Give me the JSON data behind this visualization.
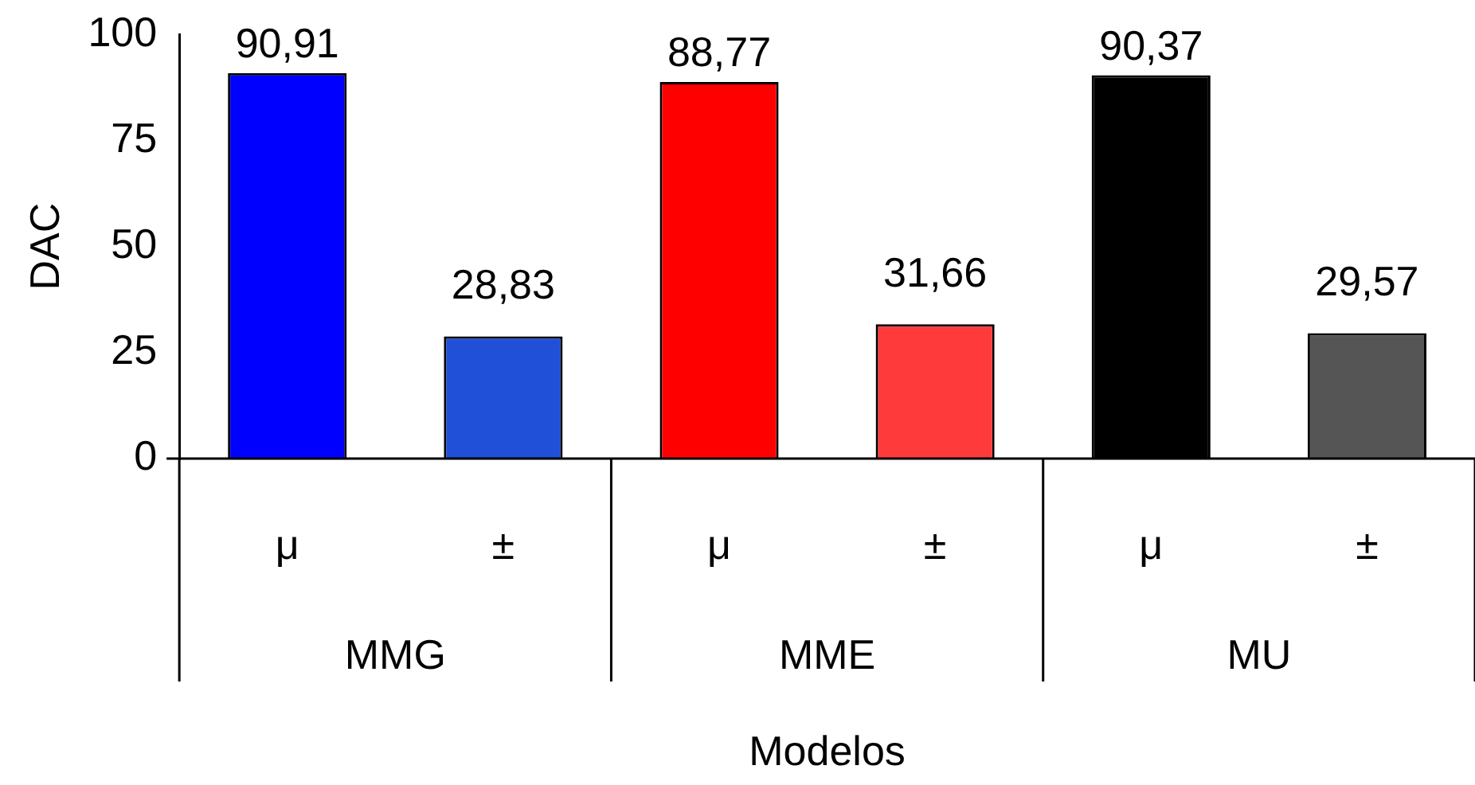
{
  "chart_data": {
    "type": "bar",
    "xlabel": "Modelos",
    "ylabel": "DAC",
    "categories": [
      "μ",
      "±",
      "μ",
      "±",
      "μ",
      "±"
    ],
    "values": [
      90.91,
      28.83,
      88.77,
      31.66,
      90.37,
      29.57
    ],
    "value_labels": [
      "90,91",
      "28,83",
      "88,77",
      "31,66",
      "90,37",
      "29,57"
    ],
    "colors": [
      "#0000ff",
      "#2050d8",
      "#ff0000",
      "#ff3a3a",
      "#000000",
      "#555555"
    ],
    "ylim": [
      0,
      100
    ],
    "yticks": [
      0,
      25,
      50,
      75,
      100
    ],
    "grid": false,
    "legend": false,
    "annotations": [
      "MMG",
      "MME",
      "MU"
    ]
  }
}
